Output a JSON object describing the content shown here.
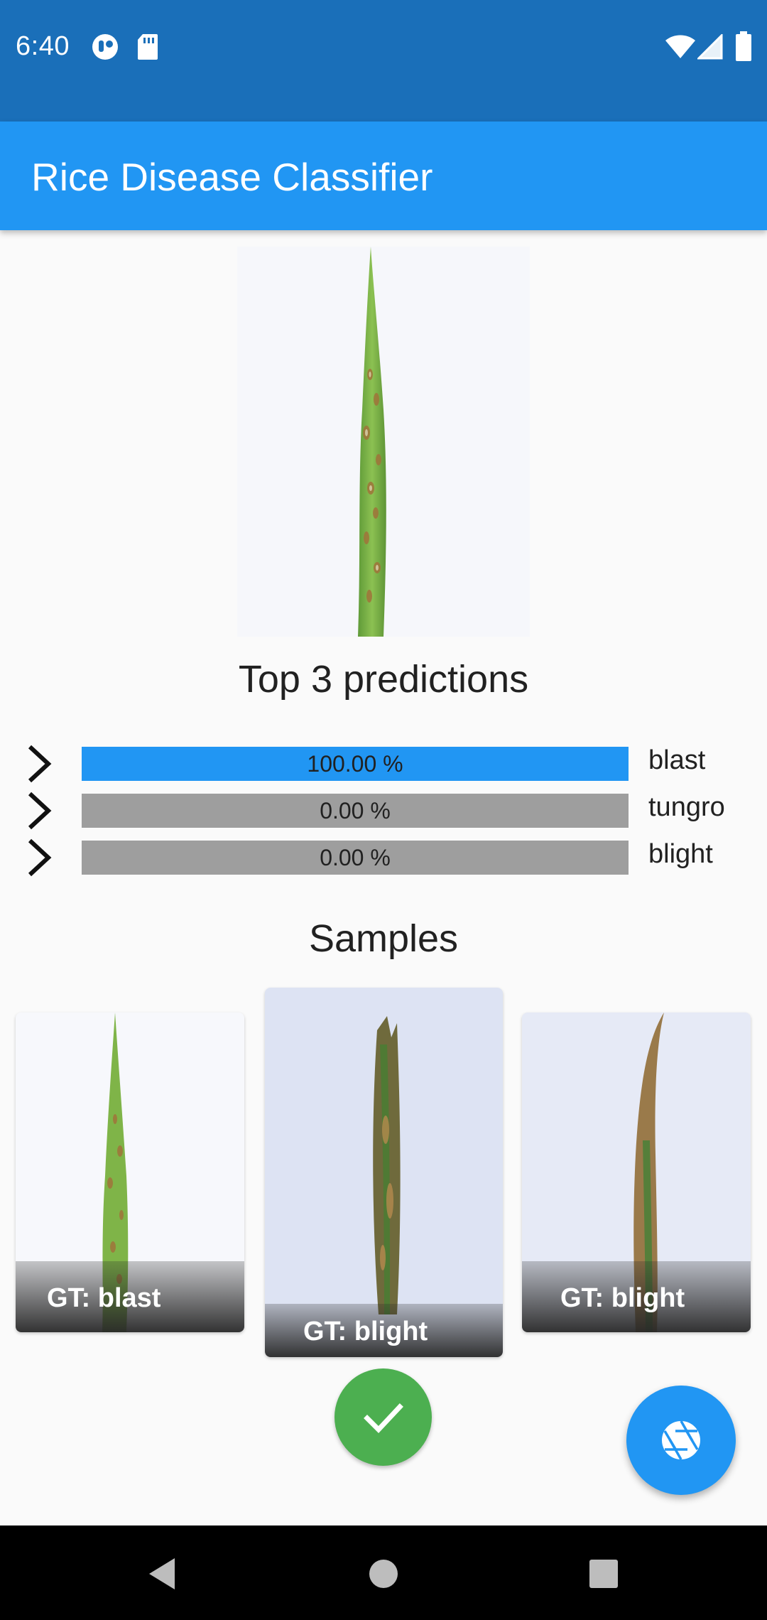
{
  "status_bar": {
    "time": "6:40",
    "left_icons": [
      "assistant-icon",
      "sd-card-icon"
    ],
    "right_icons": [
      "wifi-icon",
      "signal-icon",
      "battery-icon"
    ],
    "background_color": "#1a6fb9"
  },
  "app_bar": {
    "title": "Rice Disease Classifier",
    "background_color": "#2196f3"
  },
  "main_image": {
    "icon": "rice-leaf-image"
  },
  "predictions": {
    "title": "Top 3 predictions",
    "items": [
      {
        "value_text": "100.00 %",
        "fraction": 1.0,
        "label": "blast",
        "bar_color": "#2196f3"
      },
      {
        "value_text": "0.00 %",
        "fraction": 0.0,
        "label": "tungro",
        "bar_color": "#9e9e9e"
      },
      {
        "value_text": "0.00 %",
        "fraction": 0.0,
        "label": "blight",
        "bar_color": "#9e9e9e"
      }
    ]
  },
  "samples": {
    "title": "Samples",
    "items": [
      {
        "caption": "GT: blast"
      },
      {
        "caption": "GT: blight"
      },
      {
        "caption": "GT: blight"
      }
    ]
  },
  "buttons": {
    "confirm_icon": "check-icon",
    "confirm_color": "#4caf50",
    "camera_icon": "camera-shutter-icon",
    "camera_color": "#2196f3"
  },
  "nav_bar": {
    "icons": [
      "back-icon",
      "home-icon",
      "recents-icon"
    ]
  }
}
